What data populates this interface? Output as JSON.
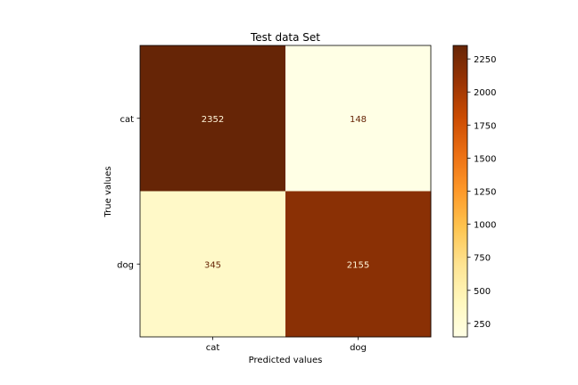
{
  "chart_data": {
    "type": "heatmap",
    "title": "Test data Set",
    "xlabel": "Predicted values",
    "ylabel": "True values",
    "x_categories": [
      "cat",
      "dog"
    ],
    "y_categories": [
      "cat",
      "dog"
    ],
    "values": [
      [
        2352,
        148
      ],
      [
        345,
        2155
      ]
    ],
    "colormap": "YlOrBr",
    "colorbar": {
      "vmin": 148,
      "vmax": 2352,
      "ticks": [
        250,
        500,
        750,
        1000,
        1250,
        1500,
        1750,
        2000,
        2250
      ]
    },
    "colors": {
      "cell_dark_text": "#fff5d8",
      "cell_light_text": "#662506"
    }
  }
}
